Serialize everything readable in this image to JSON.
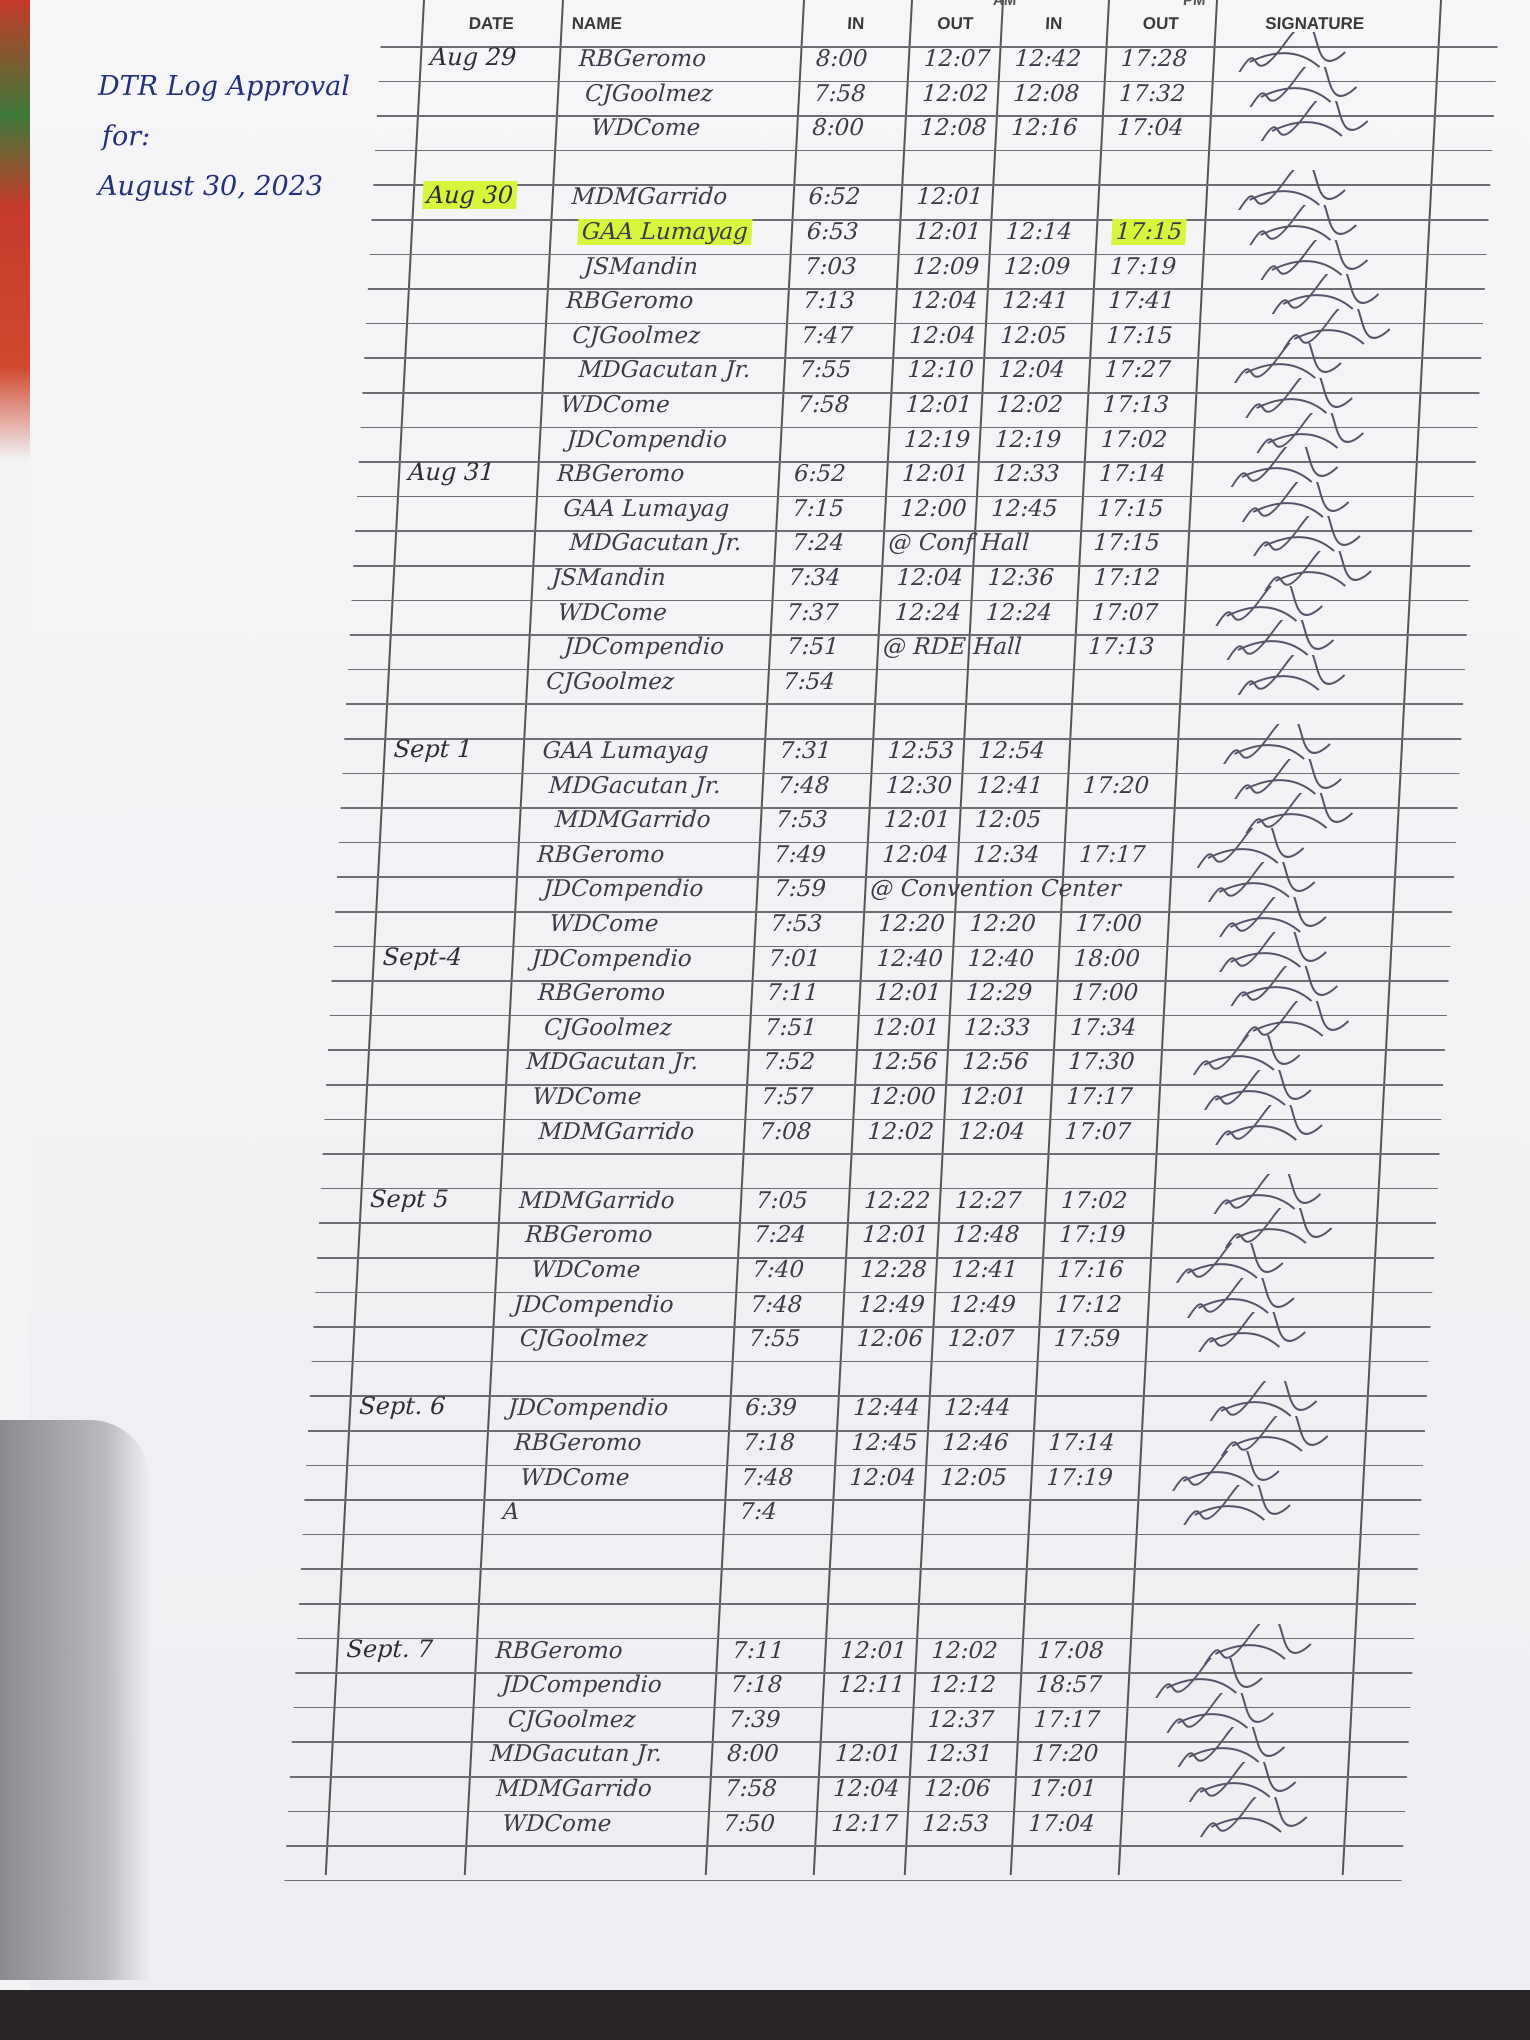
{
  "note": {
    "line1": "DTR Log Approval",
    "line2": "for:",
    "line3": "August 30, 2023"
  },
  "header": {
    "am": "AM",
    "pm": "PM",
    "date": "DATE",
    "name": "NAME",
    "am_in": "IN",
    "am_out": "OUT",
    "pm_in": "IN",
    "pm_out": "OUT",
    "signature": "SIGNATURE"
  },
  "highlight_color": "#d6f53c",
  "ink_color": "#3b3b4a",
  "groups": [
    {
      "date": "Aug 29",
      "entries": [
        {
          "name": "RBGeromo",
          "am_in": "8:00",
          "am_out": "12:07",
          "pm_in": "12:42",
          "pm_out": "17:28"
        },
        {
          "name": "CJGoolmez",
          "am_in": "7:58",
          "am_out": "12:02",
          "pm_in": "12:08",
          "pm_out": "17:32"
        },
        {
          "name": "WDCome",
          "am_in": "8:00",
          "am_out": "12:08",
          "pm_in": "12:16",
          "pm_out": "17:04"
        }
      ]
    },
    {
      "date": "Aug 30",
      "date_highlighted": true,
      "entries": [
        {
          "name": "MDMGarrido",
          "am_in": "6:52",
          "am_out": "12:01",
          "pm_in": "",
          "pm_out": ""
        },
        {
          "name": "GAA Lumayag",
          "name_highlighted": true,
          "am_in": "6:53",
          "am_out": "12:01",
          "pm_in": "12:14",
          "pm_out": "17:15",
          "pm_out_highlighted": true
        },
        {
          "name": "JSMandin",
          "am_in": "7:03",
          "am_out": "12:09",
          "pm_in": "12:09",
          "pm_out": "17:19"
        },
        {
          "name": "RBGeromo",
          "am_in": "7:13",
          "am_out": "12:04",
          "pm_in": "12:41",
          "pm_out": "17:41"
        },
        {
          "name": "CJGoolmez",
          "am_in": "7:47",
          "am_out": "12:04",
          "pm_in": "12:05",
          "pm_out": "17:15"
        },
        {
          "name": "MDGacutan Jr.",
          "am_in": "7:55",
          "am_out": "12:10",
          "pm_in": "12:04",
          "pm_out": "17:27"
        },
        {
          "name": "WDCome",
          "am_in": "7:58",
          "am_out": "12:01",
          "pm_in": "12:02",
          "pm_out": "17:13"
        },
        {
          "name": "JDCompendio",
          "am_in": "",
          "am_out": "12:19",
          "pm_in": "12:19",
          "pm_out": "17:02"
        }
      ]
    },
    {
      "date": "Aug 31",
      "entries": [
        {
          "name": "RBGeromo",
          "am_in": "6:52",
          "am_out": "12:01",
          "pm_in": "12:33",
          "pm_out": "17:14"
        },
        {
          "name": "GAA Lumayag",
          "am_in": "7:15",
          "am_out": "12:00",
          "pm_in": "12:45",
          "pm_out": "17:15"
        },
        {
          "name": "MDGacutan Jr.",
          "am_in": "7:24",
          "note": "@ Conf Hall",
          "pm_out": "17:15"
        },
        {
          "name": "JSMandin",
          "am_in": "7:34",
          "am_out": "12:04",
          "pm_in": "12:36",
          "pm_out": "17:12"
        },
        {
          "name": "WDCome",
          "am_in": "7:37",
          "am_out": "12:24",
          "pm_in": "12:24",
          "pm_out": "17:07"
        },
        {
          "name": "JDCompendio",
          "am_in": "7:51",
          "note": "@ RDE Hall",
          "pm_out": "17:13"
        },
        {
          "name": "CJGoolmez",
          "am_in": "7:54",
          "am_out": "",
          "pm_in": "",
          "pm_out": ""
        }
      ]
    },
    {
      "date": "Sept 1",
      "entries": [
        {
          "name": "GAA Lumayag",
          "am_in": "7:31",
          "am_out": "12:53",
          "pm_in": "12:54",
          "pm_out": ""
        },
        {
          "name": "MDGacutan Jr.",
          "am_in": "7:48",
          "am_out": "12:30",
          "pm_in": "12:41",
          "pm_out": "17:20"
        },
        {
          "name": "MDMGarrido",
          "am_in": "7:53",
          "am_out": "12:01",
          "pm_in": "12:05",
          "pm_out": ""
        },
        {
          "name": "RBGeromo",
          "am_in": "7:49",
          "am_out": "12:04",
          "pm_in": "12:34",
          "pm_out": "17:17"
        },
        {
          "name": "JDCompendio",
          "am_in": "7:59",
          "note": "@ Convention Center"
        },
        {
          "name": "WDCome",
          "am_in": "7:53",
          "am_out": "12:20",
          "pm_in": "12:20",
          "pm_out": "17:00"
        }
      ]
    },
    {
      "date": "Sept-4",
      "entries": [
        {
          "name": "JDCompendio",
          "am_in": "7:01",
          "am_out": "12:40",
          "pm_in": "12:40",
          "pm_out": "18:00"
        },
        {
          "name": "RBGeromo",
          "am_in": "7:11",
          "am_out": "12:01",
          "pm_in": "12:29",
          "pm_out": "17:00"
        },
        {
          "name": "CJGoolmez",
          "am_in": "7:51",
          "am_out": "12:01",
          "pm_in": "12:33",
          "pm_out": "17:34"
        },
        {
          "name": "MDGacutan Jr.",
          "am_in": "7:52",
          "am_out": "12:56",
          "pm_in": "12:56",
          "pm_out": "17:30"
        },
        {
          "name": "WDCome",
          "am_in": "7:57",
          "am_out": "12:00",
          "pm_in": "12:01",
          "pm_out": "17:17"
        },
        {
          "name": "MDMGarrido",
          "am_in": "7:08",
          "am_out": "12:02",
          "pm_in": "12:04",
          "pm_out": "17:07"
        }
      ]
    },
    {
      "date": "Sept 5",
      "entries": [
        {
          "name": "MDMGarrido",
          "am_in": "7:05",
          "am_out": "12:22",
          "pm_in": "12:27",
          "pm_out": "17:02"
        },
        {
          "name": "RBGeromo",
          "am_in": "7:24",
          "am_out": "12:01",
          "pm_in": "12:48",
          "pm_out": "17:19"
        },
        {
          "name": "WDCome",
          "am_in": "7:40",
          "am_out": "12:28",
          "pm_in": "12:41",
          "pm_out": "17:16"
        },
        {
          "name": "JDCompendio",
          "am_in": "7:48",
          "am_out": "12:49",
          "pm_in": "12:49",
          "pm_out": "17:12"
        },
        {
          "name": "CJGoolmez",
          "am_in": "7:55",
          "am_out": "12:06",
          "pm_in": "12:07",
          "pm_out": "17:59"
        }
      ]
    },
    {
      "date": "Sept. 6",
      "entries": [
        {
          "name": "JDCompendio",
          "am_in": "6:39",
          "am_out": "12:44",
          "pm_in": "12:44",
          "pm_out": ""
        },
        {
          "name": "RBGeromo",
          "am_in": "7:18",
          "am_out": "12:45",
          "pm_in": "12:46",
          "pm_out": "17:14"
        },
        {
          "name": "WDCome",
          "am_in": "7:48",
          "am_out": "12:04",
          "pm_in": "12:05",
          "pm_out": "17:19"
        },
        {
          "name": "A",
          "am_in": "7:4",
          "am_out": "",
          "pm_in": "",
          "pm_out": ""
        }
      ]
    },
    {
      "date": "Sept. 7",
      "entries": [
        {
          "name": "RBGeromo",
          "am_in": "7:11",
          "am_out": "12:01",
          "pm_in": "12:02",
          "pm_out": "17:08"
        },
        {
          "name": "JDCompendio",
          "am_in": "7:18",
          "am_out": "12:11",
          "pm_in": "12:12",
          "pm_out": "18:57"
        },
        {
          "name": "CJGoolmez",
          "am_in": "7:39",
          "am_out": "",
          "pm_in": "12:37",
          "pm_out": "17:17"
        },
        {
          "name": "MDGacutan Jr.",
          "am_in": "8:00",
          "am_out": "12:01",
          "pm_in": "12:31",
          "pm_out": "17:20"
        },
        {
          "name": "MDMGarrido",
          "am_in": "7:58",
          "am_out": "12:04",
          "pm_in": "12:06",
          "pm_out": "17:01"
        },
        {
          "name": "WDCome",
          "am_in": "7:50",
          "am_out": "12:17",
          "pm_in": "12:53",
          "pm_out": "17:04"
        }
      ]
    }
  ]
}
